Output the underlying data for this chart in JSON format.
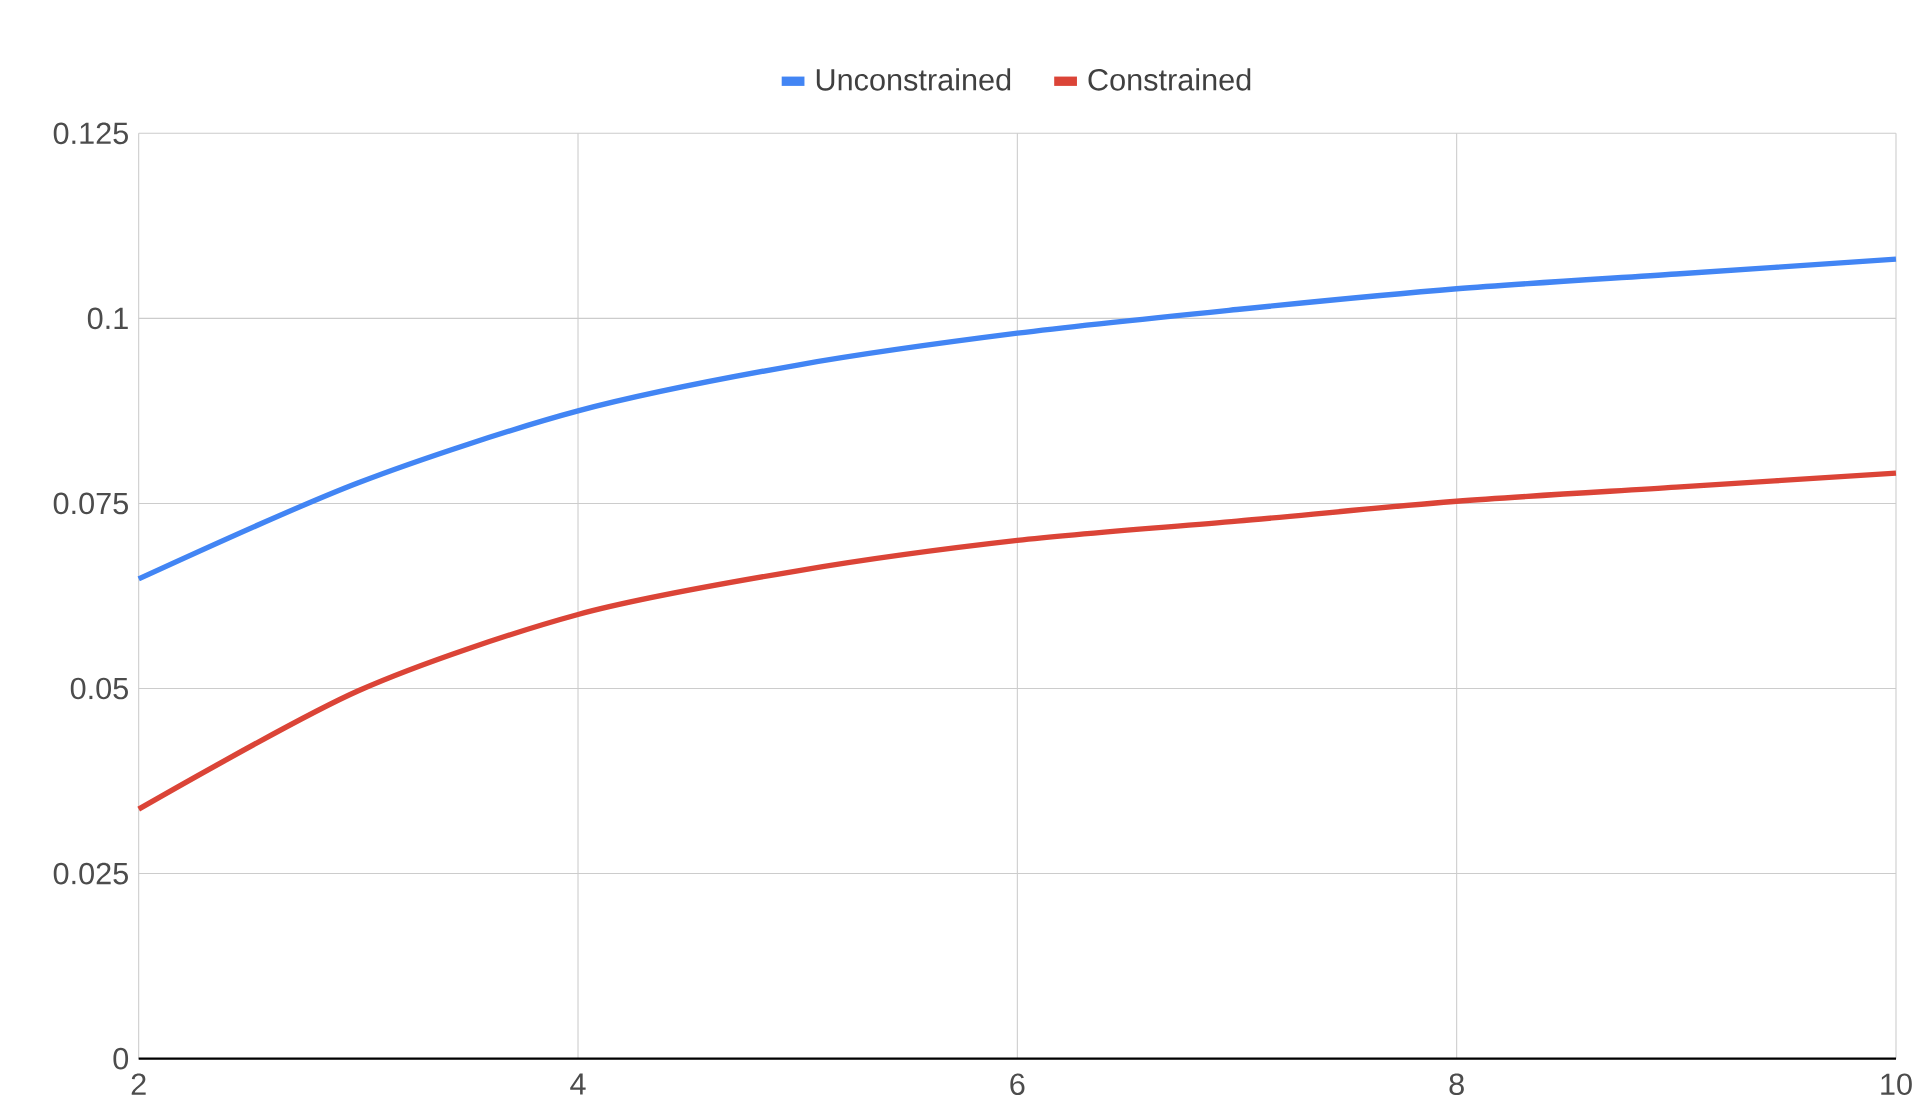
{
  "chart_data": {
    "type": "line",
    "x": [
      2,
      3,
      4,
      5,
      6,
      7,
      8,
      9,
      10
    ],
    "series": [
      {
        "name": "Unconstrained",
        "color": "#4285f4",
        "values": [
          0.0648,
          0.0778,
          0.0875,
          0.0937,
          0.098,
          0.1012,
          0.104,
          0.106,
          0.108
        ]
      },
      {
        "name": "Constrained",
        "color": "#db4437",
        "values": [
          0.0337,
          0.0497,
          0.06,
          0.0659,
          0.07,
          0.0726,
          0.0753,
          0.0772,
          0.0791
        ]
      }
    ],
    "xlim": [
      2,
      10
    ],
    "xticks": [
      2,
      4,
      6,
      8,
      10
    ],
    "ylim": [
      0,
      0.125
    ],
    "yticks": [
      0,
      0.025,
      0.05,
      0.075,
      0.1,
      0.125
    ],
    "grid": true,
    "legend": "top",
    "marker": "none",
    "line_style": "solid"
  }
}
